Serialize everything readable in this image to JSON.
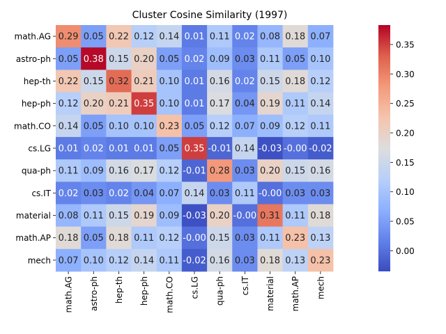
{
  "chart_data": {
    "type": "heatmap",
    "title": "Cluster Cosine Similarity (1997)",
    "xlabel": "",
    "ylabel": "",
    "rows": [
      "math.AG",
      "astro-ph",
      "hep-th",
      "hep-ph",
      "math.CO",
      "cs.LG",
      "qua-ph",
      "cs.IT",
      "material",
      "math.AP",
      "mech"
    ],
    "columns": [
      "math.AG",
      "astro-ph",
      "hep-th",
      "hep-ph",
      "math.CO",
      "cs.LG",
      "qua-ph",
      "cs.IT",
      "material",
      "math.AP",
      "mech"
    ],
    "values": [
      [
        0.29,
        0.05,
        0.22,
        0.12,
        0.14,
        0.01,
        0.11,
        0.02,
        0.08,
        0.18,
        0.07
      ],
      [
        0.05,
        0.38,
        0.15,
        0.2,
        0.05,
        0.02,
        0.09,
        0.03,
        0.11,
        0.05,
        0.1
      ],
      [
        0.22,
        0.15,
        0.32,
        0.21,
        0.1,
        0.01,
        0.16,
        0.02,
        0.15,
        0.18,
        0.12
      ],
      [
        0.12,
        0.2,
        0.21,
        0.35,
        0.1,
        0.01,
        0.17,
        0.04,
        0.19,
        0.11,
        0.14
      ],
      [
        0.14,
        0.05,
        0.1,
        0.1,
        0.23,
        0.05,
        0.12,
        0.07,
        0.09,
        0.12,
        0.11
      ],
      [
        0.01,
        0.02,
        0.01,
        0.01,
        0.05,
        0.35,
        -0.01,
        0.14,
        -0.03,
        -0.0,
        -0.02
      ],
      [
        0.11,
        0.09,
        0.16,
        0.17,
        0.12,
        -0.01,
        0.28,
        0.03,
        0.2,
        0.15,
        0.16
      ],
      [
        0.02,
        0.03,
        0.02,
        0.04,
        0.07,
        0.14,
        0.03,
        0.11,
        -0.0,
        0.03,
        0.03
      ],
      [
        0.08,
        0.11,
        0.15,
        0.19,
        0.09,
        -0.03,
        0.2,
        -0.0,
        0.31,
        0.11,
        0.18
      ],
      [
        0.18,
        0.05,
        0.18,
        0.11,
        0.12,
        -0.0,
        0.15,
        0.03,
        0.11,
        0.23,
        0.13
      ],
      [
        0.07,
        0.1,
        0.12,
        0.14,
        0.11,
        -0.02,
        0.16,
        0.03,
        0.18,
        0.13,
        0.23
      ]
    ],
    "colorbar": {
      "colormap": "coolwarm",
      "vmin": -0.035,
      "vmax": 0.383,
      "ticks": [
        0.0,
        0.05,
        0.1,
        0.15,
        0.2,
        0.25,
        0.3,
        0.35
      ],
      "tick_labels": [
        "0.00",
        "0.05",
        "0.10",
        "0.15",
        "0.20",
        "0.25",
        "0.30",
        "0.35"
      ]
    },
    "annotation_format": "2 decimals"
  }
}
